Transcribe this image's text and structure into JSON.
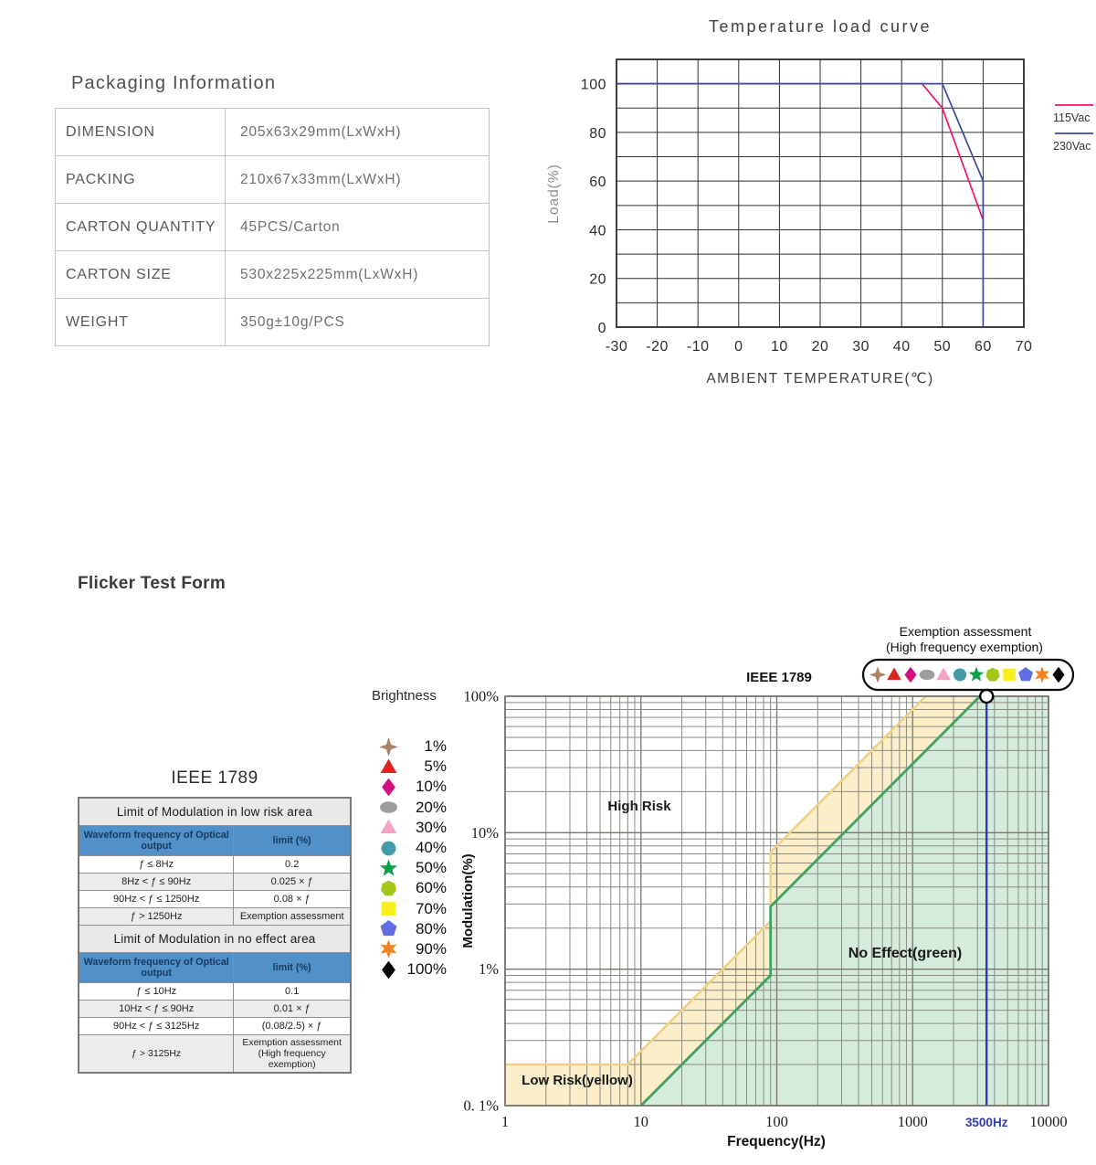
{
  "packaging": {
    "title": "Packaging Information",
    "rows": [
      {
        "label": "DIMENSION",
        "value": "205x63x29mm(LxWxH)"
      },
      {
        "label": "PACKING",
        "value": "210x67x33mm(LxWxH)"
      },
      {
        "label": "CARTON QUANTITY",
        "value": "45PCS/Carton"
      },
      {
        "label": "CARTON SIZE",
        "value": "530x225x225mm(LxWxH)"
      },
      {
        "label": "WEIGHT",
        "value": "350g±10g/PCS"
      }
    ]
  },
  "flicker_section_title": "Flicker Test Form",
  "ieee_table": {
    "title": "IEEE 1789",
    "sections": [
      {
        "header": "Limit of Modulation in low risk area",
        "col1": "Waveform frequency of Optical output",
        "col2": "limit (%)",
        "rows": [
          [
            "ƒ ≤ 8Hz",
            "0.2"
          ],
          [
            "8Hz < ƒ ≤ 90Hz",
            "0.025 × ƒ"
          ],
          [
            "90Hz < ƒ ≤ 1250Hz",
            "0.08 × ƒ"
          ],
          [
            "ƒ > 1250Hz",
            "Exemption assessment"
          ]
        ]
      },
      {
        "header": "Limit of Modulation in no effect area",
        "col1": "Waveform frequency of Optical output",
        "col2": "limit (%)",
        "rows": [
          [
            "ƒ ≤ 10Hz",
            "0.1"
          ],
          [
            "10Hz < ƒ ≤ 90Hz",
            "0.01 × ƒ"
          ],
          [
            "90Hz < ƒ ≤ 3125Hz",
            "(0.08/2.5) × ƒ"
          ],
          [
            "ƒ > 3125Hz",
            "Exemption assessment (High frequency exemption)"
          ]
        ]
      }
    ]
  },
  "brightness_legend": {
    "title": "Brightness",
    "items": [
      {
        "label": "1%",
        "shape": "star4",
        "color": "#a98268"
      },
      {
        "label": "5%",
        "shape": "triangle",
        "color": "#d9251d"
      },
      {
        "label": "10%",
        "shape": "diamond",
        "color": "#d40f7e"
      },
      {
        "label": "20%",
        "shape": "ellipse",
        "color": "#9d9d9d"
      },
      {
        "label": "30%",
        "shape": "triangle",
        "color": "#f6a2c6"
      },
      {
        "label": "40%",
        "shape": "circle",
        "color": "#439aa8"
      },
      {
        "label": "50%",
        "shape": "star5",
        "color": "#0d9e49"
      },
      {
        "label": "60%",
        "shape": "heptagon",
        "color": "#a2c717"
      },
      {
        "label": "70%",
        "shape": "square",
        "color": "#f9ee1e"
      },
      {
        "label": "80%",
        "shape": "pentagon",
        "color": "#5f6ee0"
      },
      {
        "label": "90%",
        "shape": "star6",
        "color": "#f08221"
      },
      {
        "label": "100%",
        "shape": "diamond",
        "color": "#000000"
      }
    ]
  },
  "chart_data": [
    {
      "type": "line",
      "title": "Temperature load curve",
      "xlabel": "AMBIENT TEMPERATURE(℃)",
      "ylabel": "Load(%)",
      "xlim": [
        -30,
        70
      ],
      "ylim": [
        0,
        110
      ],
      "grid_step": 10,
      "x_ticks": [
        -30,
        -20,
        -10,
        0,
        10,
        20,
        30,
        40,
        50,
        60,
        70
      ],
      "y_tick_labels": [
        0,
        20,
        40,
        60,
        80,
        100
      ],
      "legend_position": "right",
      "grid": "on",
      "series": [
        {
          "name": "115Vac",
          "color": "#f0146e",
          "points": [
            [
              -30,
              100
            ],
            [
              45,
              100
            ],
            [
              50,
              90
            ],
            [
              60,
              44
            ]
          ]
        },
        {
          "name": "230Vac",
          "color": "#3b49a3",
          "points": [
            [
              -30,
              100
            ],
            [
              50,
              100
            ],
            [
              60,
              60
            ],
            [
              60,
              0
            ]
          ]
        }
      ]
    },
    {
      "type": "area",
      "title": "IEEE 1789",
      "xlabel": "Frequency(Hz)",
      "ylabel": "Modulation(%)",
      "x_scale": "log",
      "y_scale": "log",
      "xlim": [
        1,
        10000
      ],
      "ylim": [
        0.1,
        100
      ],
      "grid": "log-minor",
      "x_ticks": [
        {
          "value": 1,
          "label": "1"
        },
        {
          "value": 10,
          "label": "10"
        },
        {
          "value": 100,
          "label": "100"
        },
        {
          "value": 1000,
          "label": "1000"
        },
        {
          "value": 3500,
          "label": "3500Hz",
          "color": "#2b3db1"
        },
        {
          "value": 10000,
          "label": "10000"
        }
      ],
      "y_ticks": [
        {
          "value": 100,
          "label": "100%"
        },
        {
          "value": 10,
          "label": "10%"
        },
        {
          "value": 1,
          "label": "1%"
        },
        {
          "value": 0.1,
          "label": "0. 1%"
        }
      ],
      "regions": [
        {
          "name": "Low Risk(yellow)",
          "fill": "#fbeec9",
          "line_color": "#f0d185",
          "boundary": [
            [
              1,
              0.2
            ],
            [
              8,
              0.2
            ],
            [
              90,
              2.25
            ],
            [
              90,
              7.2
            ],
            [
              1250,
              100
            ]
          ]
        },
        {
          "name": "No Effect(green)",
          "fill": "#d5ecdc",
          "line_color": "#3fa162",
          "boundary": [
            [
              10,
              0.1
            ],
            [
              90,
              0.9
            ],
            [
              90,
              2.88
            ],
            [
              3125,
              100
            ]
          ]
        }
      ],
      "area_labels": [
        {
          "text": "High Risk"
        },
        {
          "text": "No Effect(green)"
        },
        {
          "text": "Low Risk(yellow)"
        }
      ],
      "marker_line": {
        "x": 3500,
        "color": "#2b3db1"
      },
      "annotation": {
        "line1": "Exemption assessment",
        "line2": "(High frequency exemption)"
      }
    }
  ]
}
